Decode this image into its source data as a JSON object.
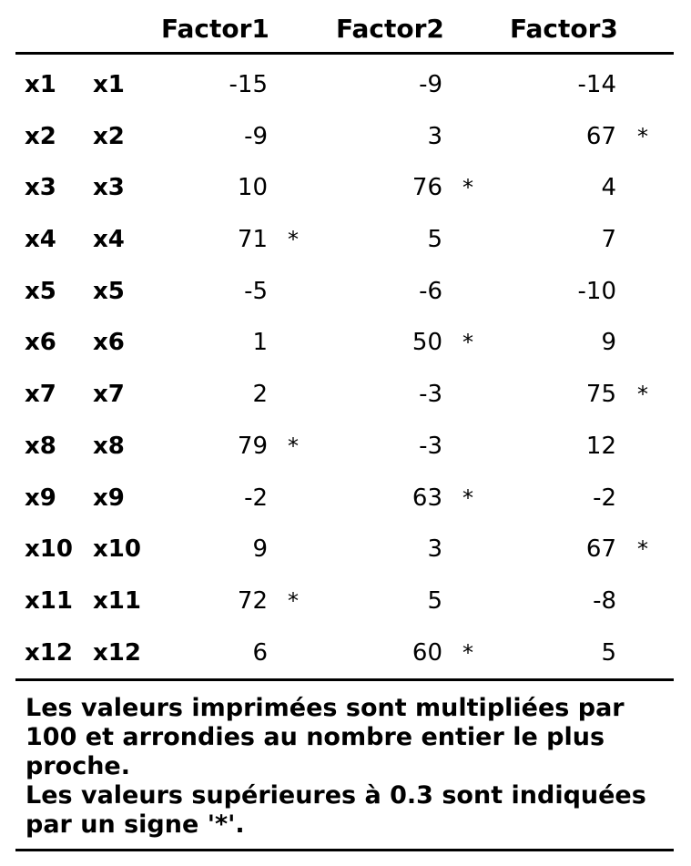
{
  "table": {
    "columns": [
      "Factor1",
      "Factor2",
      "Factor3"
    ],
    "rows": [
      {
        "label": "x1",
        "name": "x1",
        "values": [
          "-15",
          "-9",
          "-14"
        ],
        "stars": [
          "",
          "",
          ""
        ]
      },
      {
        "label": "x2",
        "name": "x2",
        "values": [
          "-9",
          "3",
          "67"
        ],
        "stars": [
          "",
          "",
          "*"
        ]
      },
      {
        "label": "x3",
        "name": "x3",
        "values": [
          "10",
          "76",
          "4"
        ],
        "stars": [
          "",
          "*",
          ""
        ]
      },
      {
        "label": "x4",
        "name": "x4",
        "values": [
          "71",
          "5",
          "7"
        ],
        "stars": [
          "*",
          "",
          ""
        ]
      },
      {
        "label": "x5",
        "name": "x5",
        "values": [
          "-5",
          "-6",
          "-10"
        ],
        "stars": [
          "",
          "",
          ""
        ]
      },
      {
        "label": "x6",
        "name": "x6",
        "values": [
          "1",
          "50",
          "9"
        ],
        "stars": [
          "",
          "*",
          ""
        ]
      },
      {
        "label": "x7",
        "name": "x7",
        "values": [
          "2",
          "-3",
          "75"
        ],
        "stars": [
          "",
          "",
          "*"
        ]
      },
      {
        "label": "x8",
        "name": "x8",
        "values": [
          "79",
          "-3",
          "12"
        ],
        "stars": [
          "*",
          "",
          ""
        ]
      },
      {
        "label": "x9",
        "name": "x9",
        "values": [
          "-2",
          "63",
          "-2"
        ],
        "stars": [
          "",
          "*",
          ""
        ]
      },
      {
        "label": "x10",
        "name": "x10",
        "values": [
          "9",
          "3",
          "67"
        ],
        "stars": [
          "",
          "",
          "*"
        ]
      },
      {
        "label": "x11",
        "name": "x11",
        "values": [
          "72",
          "5",
          "-8"
        ],
        "stars": [
          "*",
          "",
          ""
        ]
      },
      {
        "label": "x12",
        "name": "x12",
        "values": [
          "6",
          "60",
          "5"
        ],
        "stars": [
          "",
          "*",
          ""
        ]
      }
    ]
  },
  "notes": {
    "line1": "Les valeurs imprimées sont multipliées par 100 et arrondies au nombre entier le plus proche.",
    "line2": "Les valeurs supérieures à 0.3 sont indiquées par un signe '*'."
  }
}
